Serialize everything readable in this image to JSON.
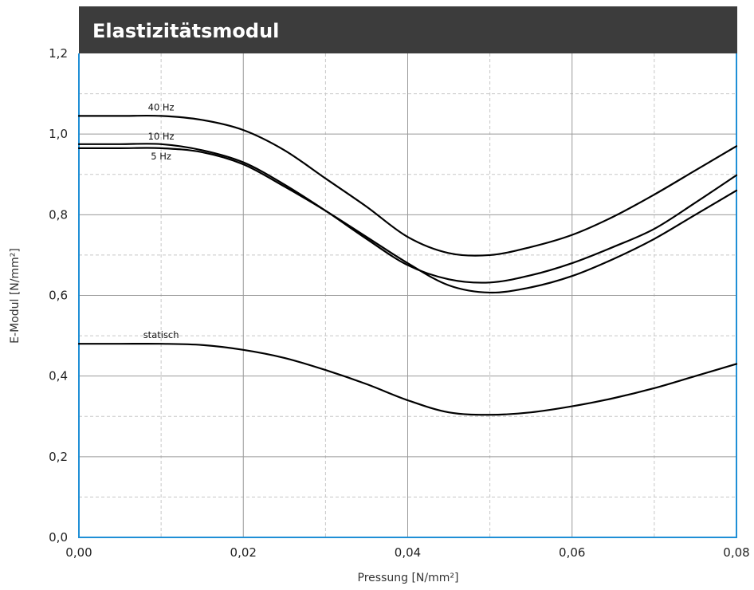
{
  "title": "Elastizitätsmodul",
  "colors": {
    "title_bar": "#3c3c3c",
    "axis": "#1f8fd6",
    "lines": "#000000"
  },
  "chart_data": {
    "type": "line",
    "title": "Elastizitätsmodul",
    "xlabel": "Pressung [N/mm²]",
    "ylabel": "E-Modul [N/mm²]",
    "xlim": [
      0,
      0.08
    ],
    "ylim": [
      0,
      1.2
    ],
    "grid": true,
    "x_ticks": [
      0,
      0.02,
      0.04,
      0.06,
      0.08
    ],
    "x_tick_labels": [
      "0,00",
      "0,02",
      "0,04",
      "0,06",
      "0,08"
    ],
    "y_ticks": [
      0,
      0.2,
      0.4,
      0.6,
      0.8,
      1.0,
      1.2
    ],
    "y_tick_labels": [
      "0,0",
      "0,2",
      "0,4",
      "0,6",
      "0,8",
      "1,0",
      "1,2"
    ],
    "x": [
      0,
      0.005,
      0.01,
      0.015,
      0.02,
      0.025,
      0.03,
      0.035,
      0.04,
      0.045,
      0.05,
      0.055,
      0.06,
      0.065,
      0.07,
      0.075,
      0.08
    ],
    "series": [
      {
        "name": "40 Hz",
        "values": [
          1.045,
          1.045,
          1.045,
          1.035,
          1.01,
          0.96,
          0.89,
          0.82,
          0.745,
          0.705,
          0.7,
          0.72,
          0.75,
          0.795,
          0.85,
          0.91,
          0.97
        ]
      },
      {
        "name": "10 Hz",
        "values": [
          0.975,
          0.975,
          0.975,
          0.96,
          0.93,
          0.875,
          0.81,
          0.74,
          0.675,
          0.64,
          0.632,
          0.65,
          0.68,
          0.72,
          0.765,
          0.83,
          0.898
        ]
      },
      {
        "name": "5 Hz",
        "values": [
          0.965,
          0.965,
          0.965,
          0.955,
          0.925,
          0.87,
          0.81,
          0.745,
          0.68,
          0.625,
          0.607,
          0.62,
          0.648,
          0.69,
          0.74,
          0.8,
          0.86
        ]
      },
      {
        "name": "statisch",
        "values": [
          0.48,
          0.48,
          0.48,
          0.477,
          0.465,
          0.445,
          0.415,
          0.38,
          0.34,
          0.31,
          0.304,
          0.31,
          0.325,
          0.345,
          0.37,
          0.4,
          0.43
        ]
      }
    ]
  }
}
